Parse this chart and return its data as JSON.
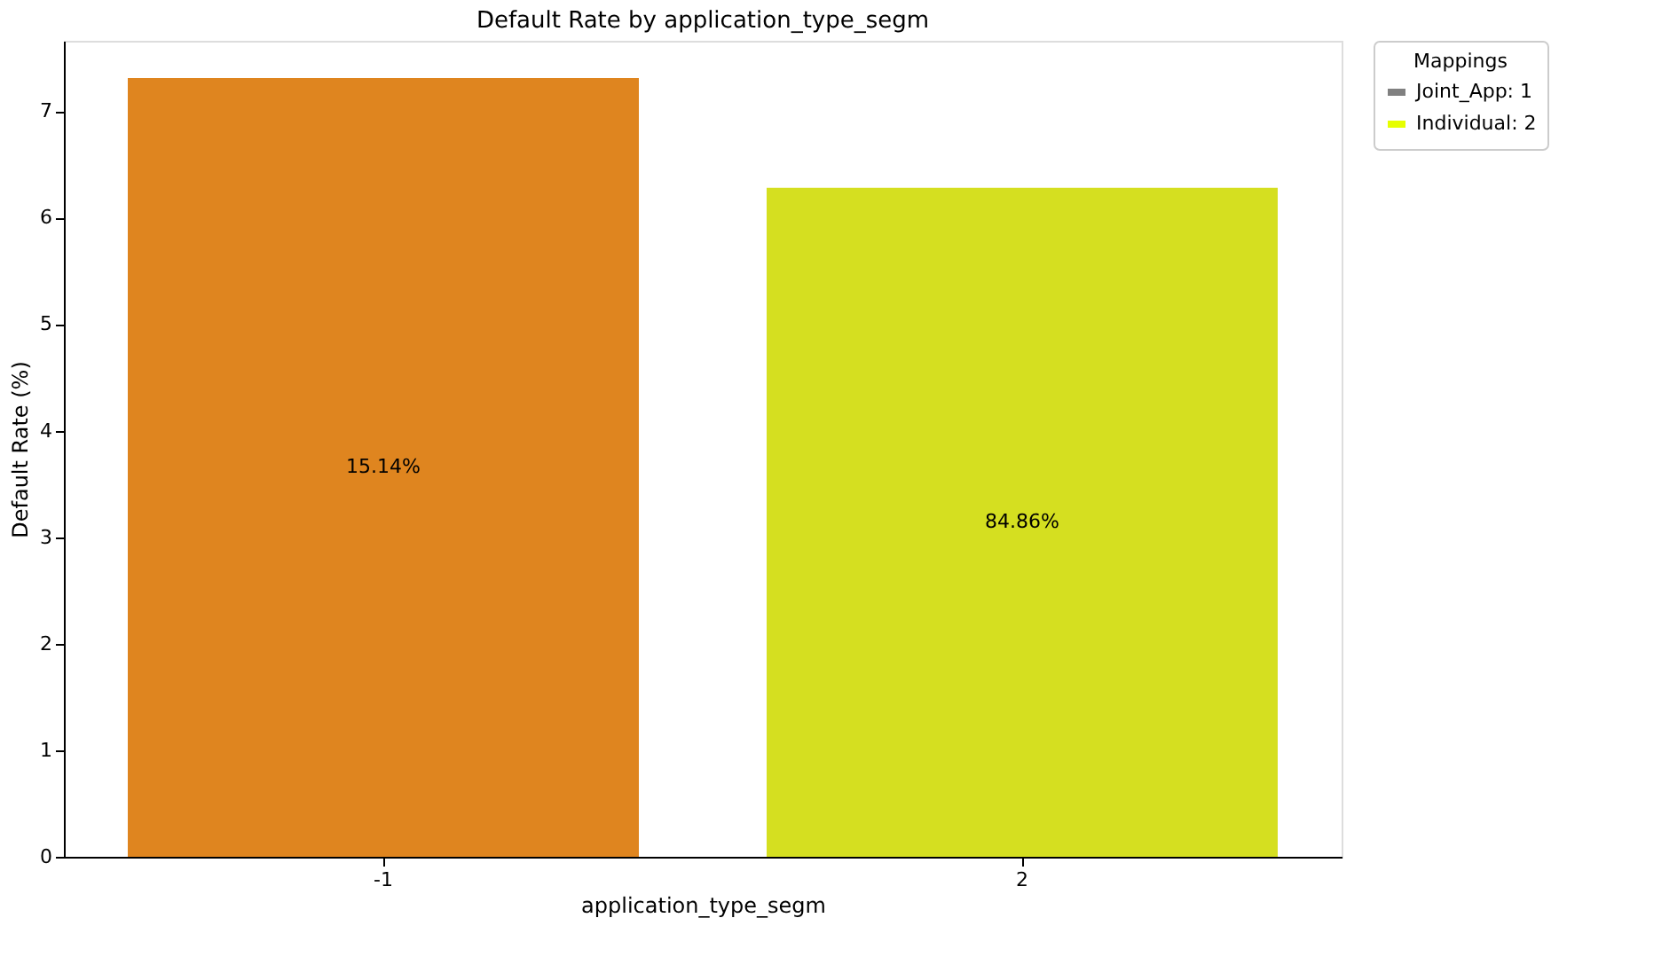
{
  "chart_data": {
    "type": "bar",
    "title": "Default Rate by application_type_segm",
    "xlabel": "application_type_segm",
    "ylabel": "Default Rate (%)",
    "categories": [
      "-1",
      "2"
    ],
    "values": [
      7.31,
      6.28
    ],
    "colors": [
      "#df851f",
      "#d5df20"
    ],
    "ylim": [
      0,
      7.66
    ],
    "yticks": [
      0,
      1,
      2,
      3,
      4,
      5,
      6,
      7
    ],
    "grid": false,
    "legend_title": "Mappings",
    "annotations": [
      "Joint_App: 1",
      "Individual: 2",
      "15.14%",
      "84.86%"
    ]
  }
}
